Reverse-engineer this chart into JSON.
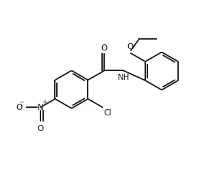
{
  "bg_color": "#ffffff",
  "line_color": "#1a1a1a",
  "line_width": 1.4,
  "font_size": 8.5,
  "figsize": [
    3.27,
    2.52
  ],
  "dpi": 100,
  "xlim": [
    0,
    9.5
  ],
  "ylim": [
    0,
    7.3
  ]
}
